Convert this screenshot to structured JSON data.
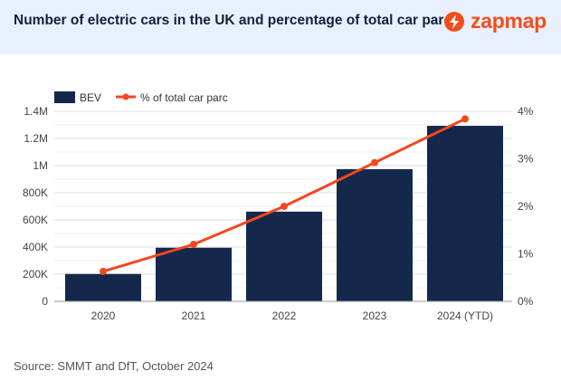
{
  "header": {
    "title": "Number of electric cars in the UK and percentage of total car parc",
    "brand": "zapmap"
  },
  "source": "Source: SMMT and DfT, October 2024",
  "colors": {
    "bar": "#14284b",
    "line": "#f4471e",
    "header_bg": "#e8f0fd",
    "brand": "#f24e1e"
  },
  "chart_data": {
    "type": "bar+line",
    "categories": [
      "2020",
      "2021",
      "2022",
      "2023",
      "2024 (YTD)"
    ],
    "series": [
      {
        "name": "BEV",
        "type": "bar",
        "axis": "left",
        "values": [
          202000,
          395000,
          661000,
          974000,
          1293000
        ]
      },
      {
        "name": "% of total car parc",
        "type": "line",
        "axis": "right",
        "values": [
          0.63,
          1.2,
          2.0,
          2.92,
          3.84
        ]
      }
    ],
    "y_left": {
      "ylim": [
        0,
        1400000
      ],
      "ticks": [
        0,
        200000,
        400000,
        600000,
        800000,
        1000000,
        1200000,
        1400000
      ],
      "tick_labels": [
        "0",
        "200K",
        "400K",
        "600K",
        "800K",
        "1M",
        "1.2M",
        "1.4M"
      ]
    },
    "y_right": {
      "ylim": [
        0,
        4
      ],
      "ticks": [
        0,
        1,
        2,
        3,
        4
      ],
      "tick_labels": [
        "0%",
        "1%",
        "2%",
        "3%",
        "4%"
      ]
    },
    "grid": true,
    "legend": "top-left"
  }
}
